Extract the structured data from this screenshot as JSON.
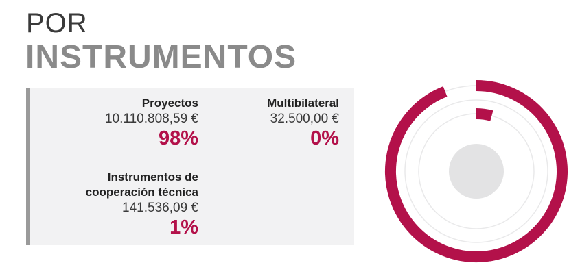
{
  "header": {
    "line1": "POR",
    "line2": "INSTRUMENTOS"
  },
  "items": [
    {
      "label": "Proyectos",
      "amount": "10.110.808,59 €",
      "percent": "98%"
    },
    {
      "label": "Multibilateral",
      "amount": "32.500,00 €",
      "percent": "0%"
    },
    {
      "label_line1": "Instrumentos de",
      "label_line2": "cooperación técnica",
      "amount": "141.536,09 €",
      "percent": "1%"
    }
  ],
  "colors": {
    "accent": "#b3114a",
    "track": "#e9e9ea",
    "center": "#e3e3e4",
    "title_dark": "#3a3a3a",
    "title_light": "#8a8a8a"
  },
  "chart_data": {
    "type": "radial-bar",
    "categories": [
      "Proyectos",
      "Multibilateral",
      "Instrumentos de cooperación técnica"
    ],
    "values": [
      98,
      0,
      1
    ],
    "unit": "%"
  }
}
